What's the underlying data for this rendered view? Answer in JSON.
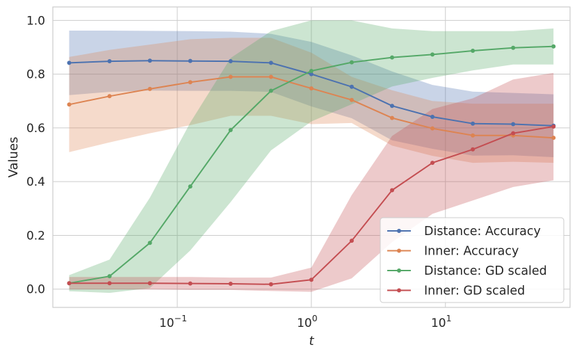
{
  "chart_data": {
    "type": "line",
    "title": "",
    "xlabel": "t",
    "ylabel": "Values",
    "xscale": "log",
    "xlim": [
      0.0118,
      85
    ],
    "ylim": [
      -0.068,
      1.05
    ],
    "grid": true,
    "legend_position": "bottom-right",
    "x": [
      0.015625,
      0.03125,
      0.0625,
      0.125,
      0.25,
      0.5,
      1,
      2,
      4,
      8,
      16,
      32,
      64
    ],
    "x_ticks": [
      {
        "value": 0.1,
        "mantissa": "10",
        "exponent": "−1"
      },
      {
        "value": 1,
        "mantissa": "10",
        "exponent": "0"
      },
      {
        "value": 10,
        "mantissa": "10",
        "exponent": "1"
      }
    ],
    "y_ticks": [
      {
        "value": 0.0,
        "label": "0.0"
      },
      {
        "value": 0.2,
        "label": "0.2"
      },
      {
        "value": 0.4,
        "label": "0.4"
      },
      {
        "value": 0.6,
        "label": "0.6"
      },
      {
        "value": 0.8,
        "label": "0.8"
      },
      {
        "value": 1.0,
        "label": "1.0"
      }
    ],
    "series": [
      {
        "name": "Distance: Accuracy",
        "color": "#4c72b0",
        "values": [
          0.842,
          0.848,
          0.85,
          0.849,
          0.848,
          0.842,
          0.8,
          0.753,
          0.682,
          0.641,
          0.616,
          0.614,
          0.608
        ],
        "upper": [
          0.962,
          0.962,
          0.961,
          0.96,
          0.958,
          0.95,
          0.92,
          0.87,
          0.81,
          0.76,
          0.735,
          0.73,
          0.725
        ],
        "lower": [
          0.722,
          0.734,
          0.739,
          0.738,
          0.738,
          0.734,
          0.68,
          0.636,
          0.554,
          0.522,
          0.497,
          0.498,
          0.491
        ]
      },
      {
        "name": "Inner: Accuracy",
        "color": "#dd8452",
        "values": [
          0.687,
          0.718,
          0.745,
          0.77,
          0.79,
          0.79,
          0.747,
          0.704,
          0.637,
          0.598,
          0.572,
          0.572,
          0.563
        ],
        "upper": [
          0.864,
          0.89,
          0.91,
          0.93,
          0.935,
          0.935,
          0.88,
          0.79,
          0.74,
          0.7,
          0.69,
          0.69,
          0.69
        ],
        "lower": [
          0.51,
          0.546,
          0.58,
          0.61,
          0.645,
          0.645,
          0.614,
          0.618,
          0.534,
          0.496,
          0.47,
          0.474,
          0.47
        ]
      },
      {
        "name": "Distance: GD scaled",
        "color": "#55a868",
        "values": [
          0.022,
          0.048,
          0.172,
          0.382,
          0.592,
          0.738,
          0.812,
          0.844,
          0.862,
          0.873,
          0.887,
          0.898,
          0.903
        ],
        "upper": [
          0.052,
          0.11,
          0.34,
          0.62,
          0.86,
          0.96,
          1.0,
          1.0,
          0.97,
          0.96,
          0.96,
          0.96,
          0.97
        ],
        "lower": [
          -0.008,
          -0.014,
          0.004,
          0.144,
          0.324,
          0.516,
          0.624,
          0.688,
          0.754,
          0.786,
          0.814,
          0.836,
          0.836
        ]
      },
      {
        "name": "Inner: GD scaled",
        "color": "#c44e52",
        "values": [
          0.022,
          0.022,
          0.022,
          0.021,
          0.02,
          0.018,
          0.035,
          0.18,
          0.368,
          0.47,
          0.52,
          0.58,
          0.605
        ],
        "upper": [
          0.045,
          0.045,
          0.045,
          0.045,
          0.043,
          0.043,
          0.08,
          0.35,
          0.57,
          0.67,
          0.71,
          0.78,
          0.805
        ],
        "lower": [
          -0.001,
          -0.001,
          -0.001,
          -0.003,
          -0.003,
          -0.007,
          -0.01,
          0.04,
          0.175,
          0.28,
          0.33,
          0.38,
          0.405
        ]
      }
    ]
  }
}
